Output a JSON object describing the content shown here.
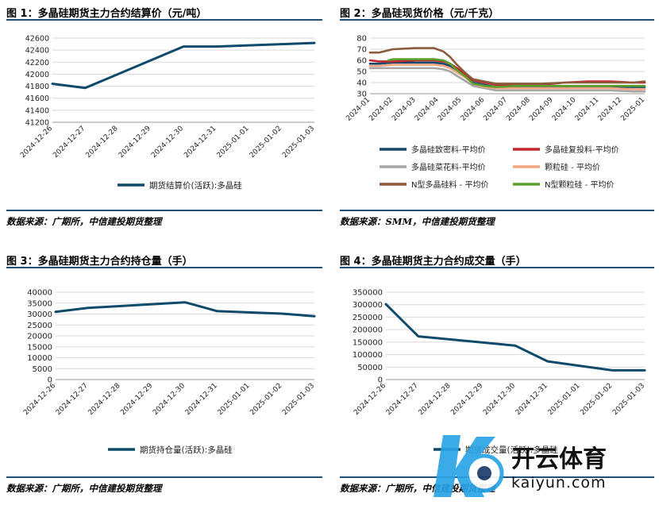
{
  "colors": {
    "navy": "#0f4a6b",
    "rule": "#1f4e79",
    "grid": "#d9d9d9"
  },
  "chart_data": [
    {
      "id": "fig1",
      "type": "line",
      "title": "图 1：多晶硅期货主力合约结算价（元/吨）",
      "source": "数据来源：广期所，中信建投期货整理",
      "categories": [
        "2024-12-26",
        "2024-12-27",
        "2024-12-28",
        "2024-12-29",
        "2024-12-30",
        "2024-12-31",
        "2025-01-01",
        "2025-01-02",
        "2025-01-03"
      ],
      "y_ticks": [
        41200,
        41400,
        41600,
        41800,
        42000,
        42200,
        42400,
        42600
      ],
      "ylim": [
        41200,
        42600
      ],
      "grid": true,
      "legend": "bottom",
      "series": [
        {
          "name": "期货结算价(活跃):多晶硅",
          "color": "#0f4a6b",
          "points": [
            [
              0,
              41840
            ],
            [
              1,
              41770
            ],
            [
              4,
              42460
            ],
            [
              5,
              42460
            ],
            [
              8,
              42520
            ]
          ]
        }
      ]
    },
    {
      "id": "fig2",
      "type": "line",
      "title": "图 2：多晶硅现货价格（元/千克）",
      "source": "数据来源：SMM，中信建投期货整理",
      "categories": [
        "2024-01",
        "2024-02",
        "2024-03",
        "2024-04",
        "2024-05",
        "2024-06",
        "2024-07",
        "2024-08",
        "2024-09",
        "2024-10",
        "2024-11",
        "2024-12",
        "2025-01"
      ],
      "y_ticks": [
        30,
        40,
        50,
        60,
        70,
        80
      ],
      "ylim": [
        30,
        80
      ],
      "grid": true,
      "legend": "bottom",
      "series": [
        {
          "name": "多晶硅致密料-平均价",
          "color": "#17486b",
          "points": [
            [
              0,
              57
            ],
            [
              0.4,
              57
            ],
            [
              1.0,
              58
            ],
            [
              2.0,
              58
            ],
            [
              2.8,
              58
            ],
            [
              3.2,
              57
            ],
            [
              3.5,
              55
            ],
            [
              3.8,
              50
            ],
            [
              4.2,
              45
            ],
            [
              4.5,
              40
            ],
            [
              5.0,
              38
            ],
            [
              5.5,
              36
            ],
            [
              6.5,
              36
            ],
            [
              7.5,
              36
            ],
            [
              8.5,
              36
            ],
            [
              9.5,
              36
            ],
            [
              10.5,
              36
            ],
            [
              11.5,
              36
            ],
            [
              12,
              36
            ]
          ]
        },
        {
          "name": "多晶硅复投料-平均价",
          "color": "#c0282d",
          "points": [
            [
              0,
              60
            ],
            [
              0.4,
              59
            ],
            [
              1.0,
              59
            ],
            [
              2.0,
              60
            ],
            [
              2.8,
              60
            ],
            [
              3.2,
              59
            ],
            [
              3.5,
              57
            ],
            [
              3.8,
              53
            ],
            [
              4.2,
              47
            ],
            [
              4.5,
              42
            ],
            [
              5.0,
              40
            ],
            [
              5.5,
              38
            ],
            [
              6.5,
              38
            ],
            [
              7.5,
              38
            ],
            [
              8.5,
              40
            ],
            [
              9.5,
              41
            ],
            [
              10.5,
              41
            ],
            [
              11.5,
              40
            ],
            [
              12,
              40
            ]
          ]
        },
        {
          "name": "多晶硅菜花料-平均价",
          "color": "#a6a6a6",
          "points": [
            [
              0,
              53
            ],
            [
              0.4,
              53
            ],
            [
              1.0,
              53
            ],
            [
              2.0,
              53
            ],
            [
              2.8,
              53
            ],
            [
              3.2,
              52
            ],
            [
              3.5,
              50
            ],
            [
              3.8,
              46
            ],
            [
              4.2,
              41
            ],
            [
              4.5,
              37
            ],
            [
              5.0,
              35
            ],
            [
              5.5,
              33
            ],
            [
              6.5,
              33
            ],
            [
              7.5,
              33
            ],
            [
              8.5,
              33
            ],
            [
              9.5,
              33
            ],
            [
              10.5,
              33
            ],
            [
              11.5,
              32
            ],
            [
              12,
              32
            ]
          ]
        },
        {
          "name": "颗粒硅 - 平均价",
          "color": "#f4a582",
          "points": [
            [
              0,
              55
            ],
            [
              0.4,
              55
            ],
            [
              1.0,
              56
            ],
            [
              2.0,
              56
            ],
            [
              2.8,
              56
            ],
            [
              3.2,
              55
            ],
            [
              3.5,
              53
            ],
            [
              3.8,
              49
            ],
            [
              4.2,
              44
            ],
            [
              4.5,
              39
            ],
            [
              5.0,
              36
            ],
            [
              5.5,
              35
            ],
            [
              6.5,
              35
            ],
            [
              7.5,
              35
            ],
            [
              8.5,
              35
            ],
            [
              9.5,
              35
            ],
            [
              10.5,
              35
            ],
            [
              11.5,
              34
            ],
            [
              12,
              34
            ]
          ]
        },
        {
          "name": "N型多晶硅料 - 平均价",
          "color": "#8c5a3c",
          "points": [
            [
              0,
              67
            ],
            [
              0.4,
              67
            ],
            [
              1.0,
              70
            ],
            [
              2.0,
              71
            ],
            [
              2.8,
              71
            ],
            [
              3.2,
              68
            ],
            [
              3.5,
              63
            ],
            [
              3.8,
              56
            ],
            [
              4.2,
              48
            ],
            [
              4.5,
              43
            ],
            [
              5.0,
              41
            ],
            [
              5.5,
              39
            ],
            [
              6.5,
              39
            ],
            [
              7.5,
              39
            ],
            [
              8.5,
              40
            ],
            [
              9.5,
              40
            ],
            [
              10.5,
              40
            ],
            [
              11.5,
              40
            ],
            [
              12,
              41
            ]
          ]
        },
        {
          "name": "N型颗粒硅 - 平均价",
          "color": "#5aa02c",
          "points": [
            [
              0.8,
              60
            ],
            [
              1.0,
              61
            ],
            [
              2.0,
              61
            ],
            [
              2.8,
              61
            ],
            [
              3.2,
              60
            ],
            [
              3.5,
              57
            ],
            [
              3.8,
              51
            ],
            [
              4.2,
              45
            ],
            [
              4.5,
              39
            ],
            [
              5.0,
              37
            ],
            [
              5.5,
              36
            ],
            [
              6.5,
              37
            ],
            [
              7.5,
              37
            ],
            [
              8.5,
              37
            ],
            [
              9.5,
              37
            ],
            [
              10.5,
              37
            ],
            [
              11.5,
              37
            ],
            [
              12,
              37
            ]
          ]
        }
      ]
    },
    {
      "id": "fig3",
      "type": "line",
      "title": "图 3：多晶硅期货主力合约持仓量（手）",
      "source": "数据来源：广期所，中信建投期货整理",
      "categories": [
        "2024-12-26",
        "2024-12-27",
        "2024-12-28",
        "2024-12-29",
        "2024-12-30",
        "2024-12-31",
        "2025-01-01",
        "2025-01-02",
        "2025-01-03"
      ],
      "y_ticks": [
        0,
        5000,
        10000,
        15000,
        20000,
        25000,
        30000,
        35000,
        40000
      ],
      "ylim": [
        0,
        40000
      ],
      "grid": true,
      "legend": "bottom",
      "series": [
        {
          "name": "期货持仓量(活跃):多晶硅",
          "color": "#0f4a6b",
          "points": [
            [
              0,
              31000
            ],
            [
              1,
              32800
            ],
            [
              4,
              35400
            ],
            [
              5,
              31300
            ],
            [
              7,
              30200
            ],
            [
              8,
              29000
            ]
          ]
        }
      ]
    },
    {
      "id": "fig4",
      "type": "line",
      "title": "图 4：多晶硅期货主力合约成交量（手）",
      "source": "数据来源：广期所，中信建投期货整理",
      "categories": [
        "2024-12-26",
        "2024-12-27",
        "2024-12-28",
        "2024-12-29",
        "2024-12-30",
        "2024-12-31",
        "2025-01-01",
        "2025-01-02",
        "2025-01-03"
      ],
      "y_ticks": [
        0,
        50000,
        100000,
        150000,
        200000,
        250000,
        300000,
        350000
      ],
      "ylim": [
        0,
        350000
      ],
      "grid": true,
      "legend": "bottom",
      "series": [
        {
          "name": "期货成交量(活跃):多晶硅",
          "color": "#0f4a6b",
          "points": [
            [
              0,
              302000
            ],
            [
              1,
              173000
            ],
            [
              4,
              136000
            ],
            [
              5,
              73000
            ],
            [
              7,
              37000
            ],
            [
              8,
              37000
            ]
          ]
        }
      ]
    }
  ],
  "watermark": {
    "brand": "开云体育",
    "domain": "kaiyun.com"
  }
}
